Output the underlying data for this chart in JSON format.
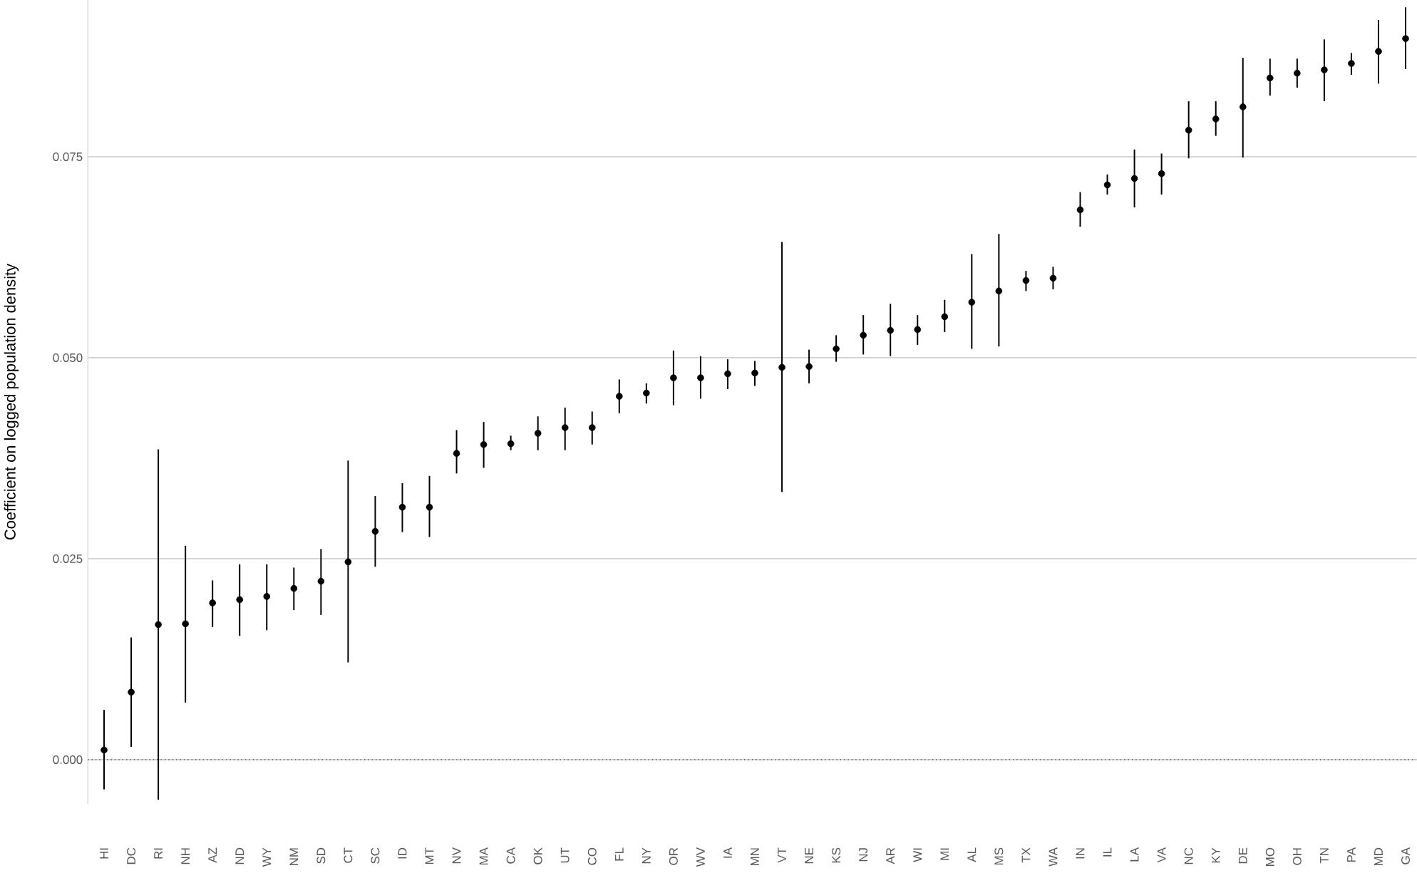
{
  "chart_data": {
    "type": "scatter",
    "ylabel": "Coefficient on logged population density",
    "categories": [
      "HI",
      "DC",
      "RI",
      "NH",
      "AZ",
      "ND",
      "WY",
      "NM",
      "SD",
      "CT",
      "SC",
      "ID",
      "MT",
      "NV",
      "MA",
      "CA",
      "OK",
      "UT",
      "CO",
      "FL",
      "NY",
      "OR",
      "WV",
      "IA",
      "MN",
      "VT",
      "NE",
      "KS",
      "NJ",
      "AR",
      "WI",
      "MI",
      "AL",
      "MS",
      "TX",
      "WA",
      "IN",
      "IL",
      "LA",
      "VA",
      "NC",
      "KY",
      "DE",
      "MO",
      "OH",
      "TN",
      "PA",
      "MD",
      "GA"
    ],
    "marker": "circle",
    "series": [
      {
        "color": "#000000",
        "values": [
          0.0012,
          0.0084,
          0.0168,
          0.0169,
          0.0195,
          0.0199,
          0.0203,
          0.0213,
          0.0222,
          0.0246,
          0.0284,
          0.0314,
          0.0314,
          0.0381,
          0.0392,
          0.0393,
          0.0406,
          0.0413,
          0.0413,
          0.0452,
          0.0456,
          0.0475,
          0.0475,
          0.048,
          0.0481,
          0.0488,
          0.0489,
          0.0511,
          0.0528,
          0.0534,
          0.0535,
          0.0551,
          0.0569,
          0.0583,
          0.0596,
          0.0599,
          0.0684,
          0.0715,
          0.0723,
          0.0729,
          0.0783,
          0.0797,
          0.0812,
          0.0848,
          0.0854,
          0.0858,
          0.0866,
          0.0881,
          0.0897
        ],
        "errors": [
          [
            -0.0037,
            0.0062
          ],
          [
            0.0016,
            0.0152
          ],
          [
            -0.005,
            0.0386
          ],
          [
            0.0071,
            0.0266
          ],
          [
            0.0165,
            0.0223
          ],
          [
            0.0154,
            0.0243
          ],
          [
            0.0161,
            0.0243
          ],
          [
            0.0186,
            0.0239
          ],
          [
            0.018,
            0.0262
          ],
          [
            0.0121,
            0.0372
          ],
          [
            0.024,
            0.0328
          ],
          [
            0.0283,
            0.0344
          ],
          [
            0.0277,
            0.0353
          ],
          [
            0.0356,
            0.041
          ],
          [
            0.0363,
            0.042
          ],
          [
            0.0385,
            0.0403
          ],
          [
            0.0385,
            0.0427
          ],
          [
            0.0385,
            0.0438
          ],
          [
            0.0392,
            0.0433
          ],
          [
            0.0431,
            0.0473
          ],
          [
            0.0443,
            0.0468
          ],
          [
            0.0441,
            0.0509
          ],
          [
            0.0449,
            0.0502
          ],
          [
            0.0461,
            0.0498
          ],
          [
            0.0465,
            0.0496
          ],
          [
            0.0333,
            0.0644
          ],
          [
            0.0468,
            0.051
          ],
          [
            0.0495,
            0.0528
          ],
          [
            0.0504,
            0.0553
          ],
          [
            0.0502,
            0.0567
          ],
          [
            0.0516,
            0.0553
          ],
          [
            0.0532,
            0.0572
          ],
          [
            0.0511,
            0.0629
          ],
          [
            0.0514,
            0.0654
          ],
          [
            0.0583,
            0.0608
          ],
          [
            0.0585,
            0.0613
          ],
          [
            0.0663,
            0.0706
          ],
          [
            0.0703,
            0.0728
          ],
          [
            0.0687,
            0.0759
          ],
          [
            0.0703,
            0.0754
          ],
          [
            0.0748,
            0.0819
          ],
          [
            0.0776,
            0.0819
          ],
          [
            0.0749,
            0.0873
          ],
          [
            0.0826,
            0.0872
          ],
          [
            0.0836,
            0.0872
          ],
          [
            0.0819,
            0.0896
          ],
          [
            0.0852,
            0.0879
          ],
          [
            0.0841,
            0.092
          ],
          [
            0.0859,
            0.0936
          ]
        ]
      }
    ],
    "ylim": [
      -0.0055,
      0.0945
    ],
    "yticks": [
      {
        "value": 0,
        "label": "0.000"
      },
      {
        "value": 0.025,
        "label": "0.025"
      },
      {
        "value": 0.05,
        "label": "0.050"
      },
      {
        "value": 0.075,
        "label": "0.075"
      }
    ],
    "grid": "y",
    "ref_lines": [
      {
        "axis": "y",
        "value": 0,
        "line_style": "dotted",
        "color": "#555555"
      }
    ]
  }
}
